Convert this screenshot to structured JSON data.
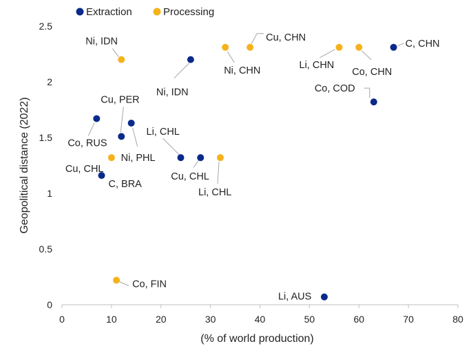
{
  "chart_data": {
    "type": "scatter",
    "xlabel": "(% of world production)",
    "ylabel": "Geopolitical distance (2022)",
    "xlim": [
      0,
      80
    ],
    "ylim": [
      0,
      2.5
    ],
    "xticks": [
      "0",
      "10",
      "20",
      "30",
      "40",
      "50",
      "60",
      "70",
      "80"
    ],
    "yticks": [
      "0",
      "0.5",
      "1",
      "1.5",
      "2",
      "2.5"
    ],
    "grid": false,
    "legend_position": "top-left",
    "series": [
      {
        "name": "Extraction",
        "color": "#0a2a8a",
        "points": [
          {
            "label": "Ni, IDN",
            "x": 26,
            "y": 2.2
          },
          {
            "label": "C, CHN",
            "x": 67,
            "y": 2.31
          },
          {
            "label": "Co, COD",
            "x": 63,
            "y": 1.82
          },
          {
            "label": "Co, RUS",
            "x": 7,
            "y": 1.67
          },
          {
            "label": "Ni, PHL",
            "x": 14,
            "y": 1.63
          },
          {
            "label": "Cu, PER",
            "x": 12,
            "y": 1.51
          },
          {
            "label": "Li, CHL",
            "x": 24,
            "y": 1.32
          },
          {
            "label": "Cu, CHL",
            "x": 28,
            "y": 1.32
          },
          {
            "label": "C, BRA",
            "x": 8,
            "y": 1.16
          },
          {
            "label": "Li, AUS",
            "x": 53,
            "y": 0.07
          }
        ]
      },
      {
        "name": "Processing",
        "color": "#f5b21c",
        "points": [
          {
            "label": "Ni, IDN",
            "x": 12,
            "y": 2.2
          },
          {
            "label": "Ni, CHN",
            "x": 33,
            "y": 2.31
          },
          {
            "label": "Cu, CHN",
            "x": 38,
            "y": 2.31
          },
          {
            "label": "Li, CHN",
            "x": 56,
            "y": 2.31
          },
          {
            "label": "Co, CHN",
            "x": 60,
            "y": 2.31
          },
          {
            "label": "Cu, CHL",
            "x": 10,
            "y": 1.32
          },
          {
            "label": "Li, CHL",
            "x": 32,
            "y": 1.32
          },
          {
            "label": "Co, FIN",
            "x": 11,
            "y": 0.22
          }
        ]
      }
    ]
  }
}
